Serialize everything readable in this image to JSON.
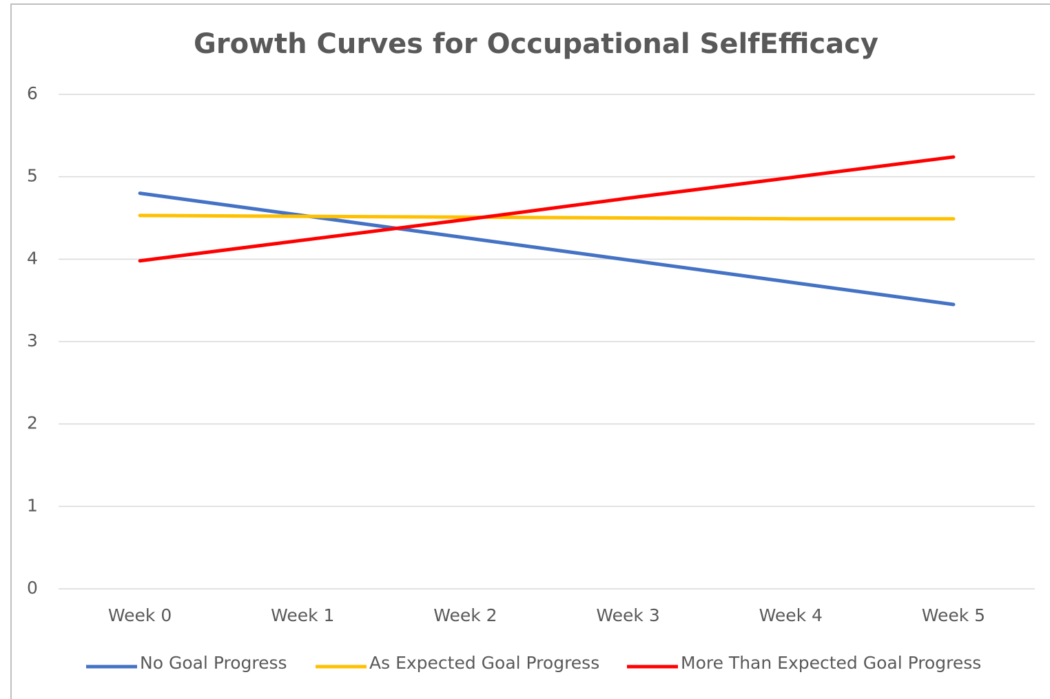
{
  "chart_data": {
    "type": "line",
    "title": "Growth Curves for Occupational SelfEfficacy",
    "categories": [
      "Week 0",
      "Week 1",
      "Week 2",
      "Week 3",
      "Week 4",
      "Week 5"
    ],
    "series": [
      {
        "name": "No Goal Progress",
        "color": "#4472c4",
        "values": [
          4.8,
          4.53,
          4.26,
          3.99,
          3.72,
          3.45
        ]
      },
      {
        "name": "As Expected Goal Progress",
        "color": "#ffc000",
        "values": [
          4.53,
          4.52,
          4.51,
          4.5,
          4.49,
          4.49
        ]
      },
      {
        "name": "More Than Expected Goal Progress",
        "color": "#ff0000",
        "values": [
          3.98,
          4.23,
          4.48,
          4.74,
          4.99,
          5.24
        ]
      }
    ],
    "ylim": [
      0,
      6
    ],
    "yticks": [
      0,
      1,
      2,
      3,
      4,
      5,
      6
    ],
    "grid": true,
    "legend": "bottom"
  }
}
